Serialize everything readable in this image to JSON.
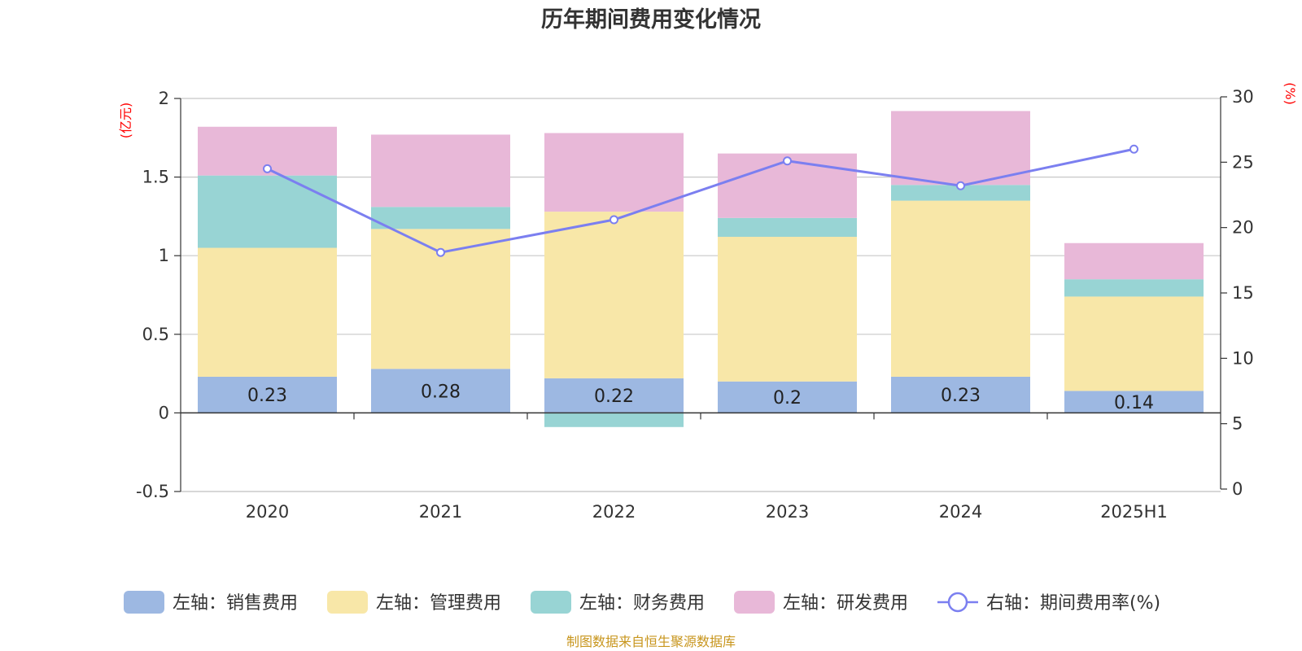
{
  "chart_data": {
    "type": "bar",
    "stacked": true,
    "title": "历年期间费用变化情况",
    "left_unit": "(亿元)",
    "right_unit": "(%)",
    "categories": [
      "2020",
      "2021",
      "2022",
      "2023",
      "2024",
      "2025H1"
    ],
    "left_axis": {
      "ylim": [
        -0.5,
        2
      ],
      "ticks": [
        -0.5,
        0,
        0.5,
        1,
        1.5,
        2
      ],
      "tick_labels": [
        "-0.5",
        "0",
        "0.5",
        "1",
        "1.5",
        "2"
      ]
    },
    "right_axis": {
      "ylim": [
        0,
        30
      ],
      "ticks": [
        0,
        5,
        10,
        15,
        20,
        25,
        30
      ],
      "tick_labels": [
        "0",
        "5",
        "10",
        "15",
        "20",
        "25",
        "30"
      ]
    },
    "grid": true,
    "legend_position": "bottom",
    "series": [
      {
        "name": "左轴：销售费用",
        "color": "#9db8e2",
        "axis": "left",
        "kind": "bar",
        "values": [
          0.23,
          0.28,
          0.22,
          0.2,
          0.23,
          0.14
        ],
        "data_labels": [
          "0.23",
          "0.28",
          "0.22",
          "0.2",
          "0.23",
          "0.14"
        ]
      },
      {
        "name": "左轴：管理费用",
        "color": "#f8e7a8",
        "axis": "left",
        "kind": "bar",
        "values": [
          0.82,
          0.89,
          1.06,
          0.92,
          1.12,
          0.6
        ]
      },
      {
        "name": "左轴：财务费用",
        "color": "#98d4d4",
        "axis": "left",
        "kind": "bar",
        "values": [
          0.46,
          0.14,
          -0.09,
          0.12,
          0.1,
          0.11
        ]
      },
      {
        "name": "左轴：研发费用",
        "color": "#e8b8d8",
        "axis": "left",
        "kind": "bar",
        "values": [
          0.31,
          0.46,
          0.5,
          0.41,
          0.47,
          0.23
        ]
      },
      {
        "name": "右轴：期间费用率(%)",
        "color": "#7b7ff0",
        "axis": "right",
        "kind": "line",
        "values": [
          24.5,
          18.1,
          20.6,
          25.1,
          23.2,
          26.0
        ]
      }
    ],
    "source": "制图数据来自恒生聚源数据库"
  }
}
